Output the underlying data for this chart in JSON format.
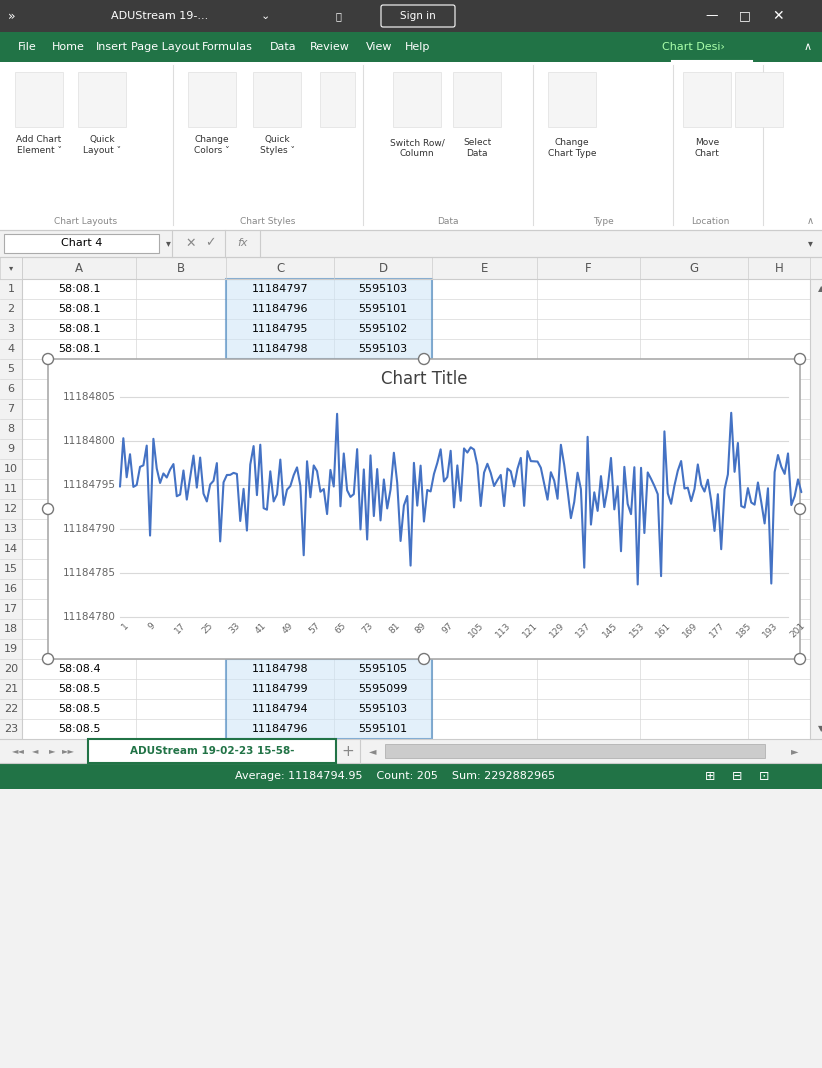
{
  "chart_title": "Chart Title",
  "window_title": "ADUStream 19-...",
  "cell_ref": "Chart 4",
  "sheet_tab": "ADUStream 19-02-23 15-58-",
  "status_text": "Average: 11184794.95    Count: 205    Sum: 2292882965",
  "y_ticks": [
    11184780,
    11184785,
    11184790,
    11184795,
    11184800,
    11184805
  ],
  "x_ticks": [
    1,
    9,
    17,
    25,
    33,
    41,
    49,
    57,
    65,
    73,
    81,
    89,
    97,
    105,
    113,
    121,
    129,
    137,
    145,
    153,
    161,
    169,
    177,
    185,
    193,
    201
  ],
  "y_min": 11184780,
  "y_max": 11184805,
  "x_min": 1,
  "x_max": 201,
  "n_points": 205,
  "target_mean": 11184794.95,
  "line_color": "#4472C4",
  "seed": 99,
  "col_A_rows14": [
    "58:08.1",
    "58:08.1",
    "58:08.1",
    "58:08.1"
  ],
  "col_C_rows14": [
    11184797,
    11184796,
    11184795,
    11184798
  ],
  "col_D_rows14": [
    5595103,
    5595101,
    5595102,
    5595103
  ],
  "col_A_rows2023": [
    "58:08.4",
    "58:08.5",
    "58:08.5",
    "58:08.5"
  ],
  "col_C_rows2023": [
    11184798,
    11184799,
    11184794,
    11184796
  ],
  "col_D_rows2023": [
    5595105,
    5595099,
    5595103,
    5595101
  ],
  "title_bar_color": "#3C3C3C",
  "menu_bar_color": "#217346",
  "ribbon_bg": "#FFFFFF",
  "sheet_bg": "#FFFFFF",
  "grid_color": "#D8D8D8",
  "chart_grid_color": "#D9D9D9",
  "status_bar_color": "#217346",
  "col_bounds": [
    22,
    136,
    226,
    334,
    432,
    537,
    640,
    748,
    810
  ],
  "col_labels": [
    "A",
    "B",
    "C",
    "D",
    "E",
    "F",
    "G",
    "H"
  ]
}
